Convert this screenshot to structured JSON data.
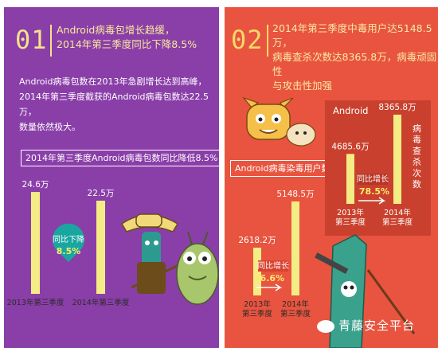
{
  "left": {
    "number": "01",
    "headline": [
      "Android病毒包增长趋缓，",
      "2014年第三季度同比下降8.5%"
    ],
    "intro": [
      "Android病毒包数在2013年急剧增长达到高峰，",
      "2014年第三季度截获的Android病毒包数达22.5万，",
      "数量依然极大。"
    ],
    "chart_label": "2014年第三季度Android病毒包数同比降低8.5%",
    "callout_text": "同比下降",
    "callout_value": "8.5%"
  },
  "right": {
    "number": "02",
    "headline": [
      "2014年第三季度中毒用户达5148.5万，",
      "病毒查杀次数达8365.8万，病毒顽固性",
      "与攻击性加强"
    ],
    "chart_label": "Android病毒染毒用户数",
    "callout_text": "同比增长",
    "callout_value": "96.6%",
    "inset": {
      "title": "Android",
      "side_label": "病毒查杀次数",
      "callout_text": "同比增长",
      "callout_value": "78.5%"
    }
  },
  "watermark": "青藤安全平台",
  "colors": {
    "left_bg": "#8a3ea8",
    "right_bg": "#e8543f",
    "bar": "#f4ec84",
    "callout_left": "#1aa6a0",
    "callout_right": "#d9412f"
  },
  "chart_data": [
    {
      "type": "bar",
      "categories": [
        "2013年第三季度",
        "2014年第三季度"
      ],
      "values": [
        24.6,
        22.5
      ],
      "data_labels": [
        "24.6万",
        "22.5万"
      ],
      "title": "2014年第三季度Android病毒包数同比降低8.5%"
    },
    {
      "type": "bar",
      "categories": [
        "2013年第三季度",
        "2014年第三季度"
      ],
      "values": [
        2618.2,
        5148.5
      ],
      "data_labels": [
        "2618.2万",
        "5148.5万"
      ],
      "title": "Android病毒染毒用户数"
    },
    {
      "type": "bar",
      "categories": [
        "2013年第三季度",
        "2014年第三季度"
      ],
      "values": [
        4685.6,
        8365.8
      ],
      "data_labels": [
        "4685.6万",
        "8365.8万"
      ],
      "title": "Android",
      "ylabel": "病毒查杀次数"
    }
  ]
}
